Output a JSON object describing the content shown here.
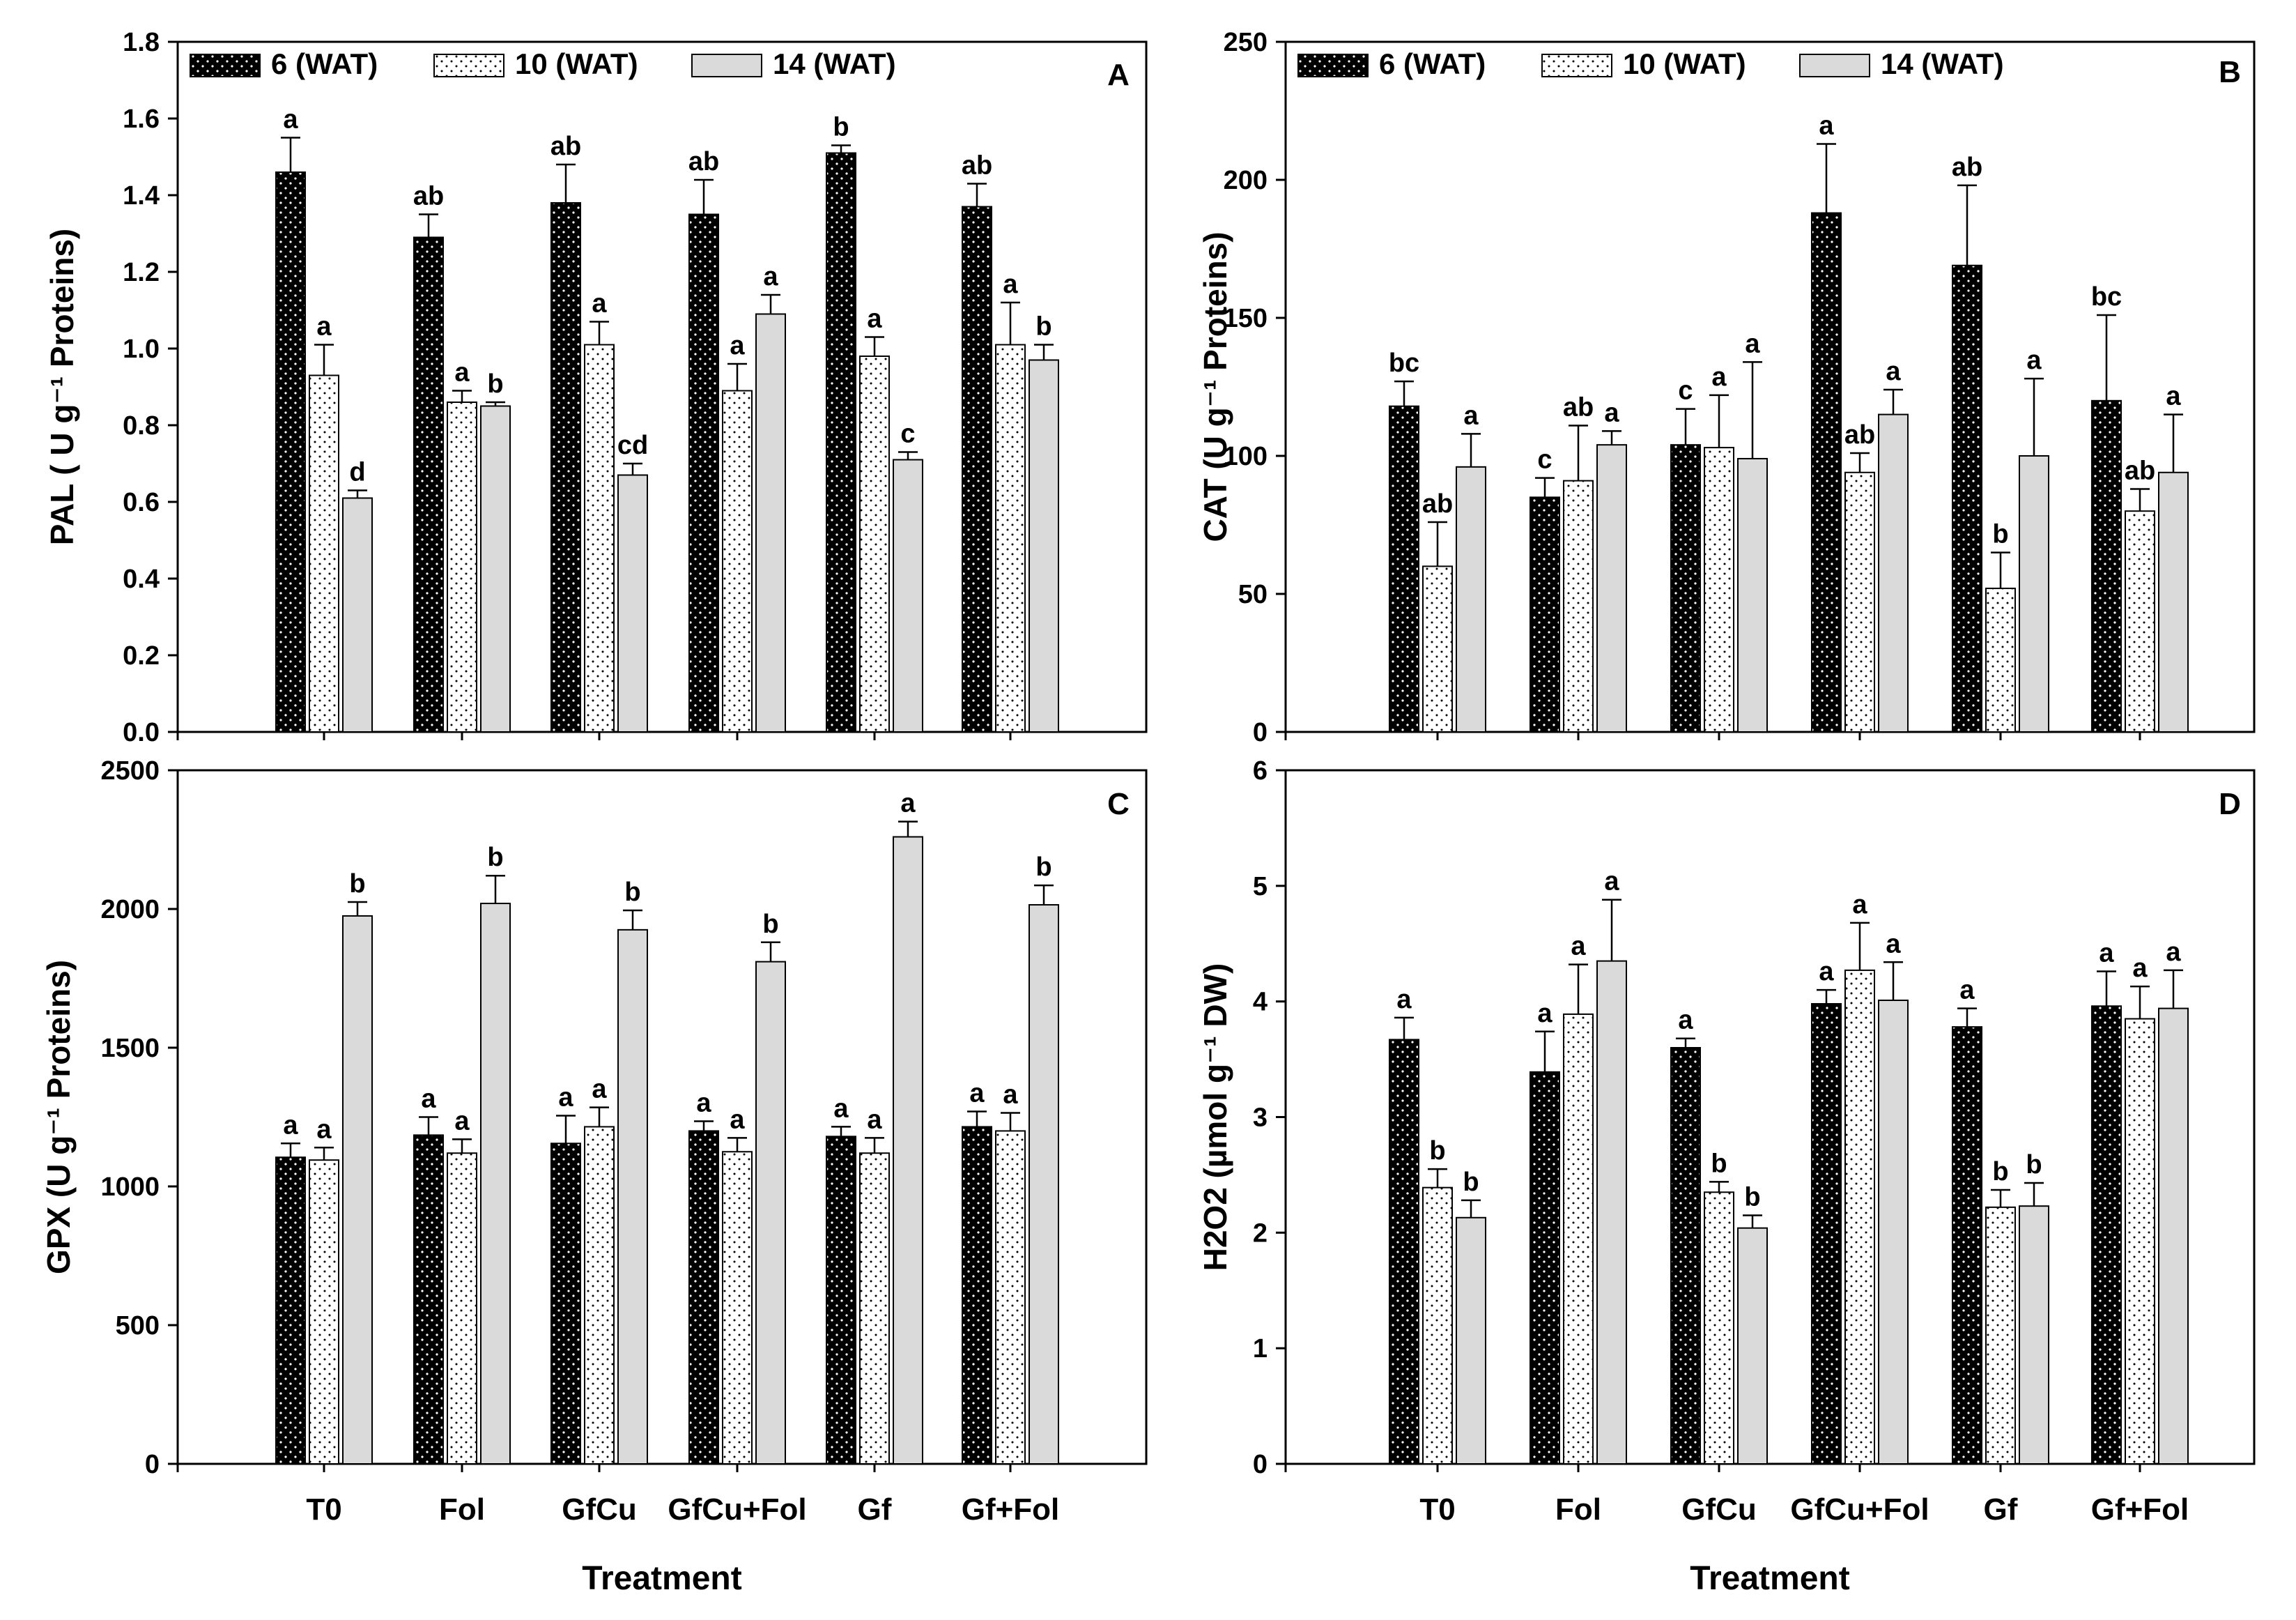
{
  "legend": {
    "series": [
      "6 (WAT)",
      "10 (WAT)",
      "14 (WAT)"
    ]
  },
  "colors": {
    "s6": "#000000",
    "s10": "#ffffff",
    "s14": "#dadada",
    "axis": "#000000"
  },
  "chart_data": [
    {
      "panel": "A",
      "type": "bar",
      "ylabel": "PAL ( U g⁻¹ Proteins)",
      "xlabel": "",
      "ylim": [
        0,
        1.8
      ],
      "yticks": [
        0.0,
        0.2,
        0.4,
        0.6,
        0.8,
        1.0,
        1.2,
        1.4,
        1.6,
        1.8
      ],
      "ytick_labels": [
        "0.0",
        "0.2",
        "0.4",
        "0.6",
        "0.8",
        "1.0",
        "1.2",
        "1.4",
        "1.6",
        "1.8"
      ],
      "categories": [
        "T0",
        "Fol",
        "GfCu",
        "GfCu+Fol",
        "Gf",
        "Gf+Fol"
      ],
      "show_xticklabels": false,
      "series": [
        {
          "name": "6 (WAT)",
          "values": [
            1.46,
            1.29,
            1.38,
            1.35,
            1.51,
            1.37
          ],
          "errors": [
            0.09,
            0.06,
            0.1,
            0.09,
            0.02,
            0.06
          ],
          "letters": [
            "a",
            "ab",
            "ab",
            "ab",
            "b",
            "ab"
          ]
        },
        {
          "name": "10 (WAT)",
          "values": [
            0.93,
            0.86,
            1.01,
            0.89,
            0.98,
            1.01
          ],
          "errors": [
            0.08,
            0.03,
            0.06,
            0.07,
            0.05,
            0.11
          ],
          "letters": [
            "a",
            "a",
            "a",
            "a",
            "a",
            "a"
          ]
        },
        {
          "name": "14 (WAT)",
          "values": [
            0.61,
            0.85,
            0.67,
            1.09,
            0.71,
            0.97
          ],
          "errors": [
            0.02,
            0.01,
            0.03,
            0.05,
            0.02,
            0.04
          ],
          "letters": [
            "d",
            "b",
            "cd",
            "a",
            "c",
            "b"
          ]
        }
      ]
    },
    {
      "panel": "B",
      "type": "bar",
      "ylabel": "CAT (U g⁻¹ Proteins)",
      "xlabel": "",
      "ylim": [
        0,
        250
      ],
      "yticks": [
        0,
        50,
        100,
        150,
        200,
        250
      ],
      "ytick_labels": [
        "0",
        "50",
        "100",
        "150",
        "200",
        "250"
      ],
      "categories": [
        "T0",
        "Fol",
        "GfCu",
        "GfCu+Fol",
        "Gf",
        "Gf+Fol"
      ],
      "show_xticklabels": false,
      "series": [
        {
          "name": "6 (WAT)",
          "values": [
            118,
            85,
            104,
            188,
            169,
            120
          ],
          "errors": [
            9,
            7,
            13,
            25,
            29,
            31
          ],
          "letters": [
            "bc",
            "c",
            "c",
            "a",
            "ab",
            "bc"
          ]
        },
        {
          "name": "10 (WAT)",
          "values": [
            60,
            91,
            103,
            94,
            52,
            80
          ],
          "errors": [
            16,
            20,
            19,
            7,
            13,
            8
          ],
          "letters": [
            "ab",
            "ab",
            "a",
            "ab",
            "b",
            "ab"
          ]
        },
        {
          "name": "14 (WAT)",
          "values": [
            96,
            104,
            99,
            115,
            100,
            94
          ],
          "errors": [
            12,
            5,
            35,
            9,
            28,
            21
          ],
          "letters": [
            "a",
            "a",
            "a",
            "a",
            "a",
            "a"
          ]
        }
      ]
    },
    {
      "panel": "C",
      "type": "bar",
      "ylabel": "GPX (U g⁻¹ Proteins)",
      "xlabel": "Treatment",
      "ylim": [
        0,
        2500
      ],
      "yticks": [
        0,
        500,
        1000,
        1500,
        2000,
        2500
      ],
      "ytick_labels": [
        "0",
        "500",
        "1000",
        "1500",
        "2000",
        "2500"
      ],
      "categories": [
        "T0",
        "Fol",
        "GfCu",
        "GfCu+Fol",
        "Gf",
        "Gf+Fol"
      ],
      "show_xticklabels": true,
      "series": [
        {
          "name": "6 (WAT)",
          "values": [
            1105,
            1185,
            1155,
            1200,
            1180,
            1215
          ],
          "errors": [
            50,
            65,
            100,
            35,
            35,
            55
          ],
          "letters": [
            "a",
            "a",
            "a",
            "a",
            "a",
            "a"
          ]
        },
        {
          "name": "10 (WAT)",
          "values": [
            1095,
            1120,
            1215,
            1125,
            1120,
            1200
          ],
          "errors": [
            45,
            50,
            70,
            50,
            55,
            65
          ],
          "letters": [
            "a",
            "a",
            "a",
            "a",
            "a",
            "a"
          ]
        },
        {
          "name": "14 (WAT)",
          "values": [
            1975,
            2020,
            1925,
            1810,
            2260,
            2015
          ],
          "errors": [
            50,
            100,
            70,
            70,
            55,
            70
          ],
          "letters": [
            "b",
            "b",
            "b",
            "b",
            "a",
            "b"
          ]
        }
      ]
    },
    {
      "panel": "D",
      "type": "bar",
      "ylabel": "H2O2 (µmol g⁻¹  DW)",
      "xlabel": "Treatment",
      "ylim": [
        0,
        6
      ],
      "yticks": [
        0,
        1,
        2,
        3,
        4,
        5,
        6
      ],
      "ytick_labels": [
        "0",
        "1",
        "2",
        "3",
        "4",
        "5",
        "6"
      ],
      "categories": [
        "T0",
        "Fol",
        "GfCu",
        "GfCu+Fol",
        "Gf",
        "Gf+Fol"
      ],
      "show_xticklabels": true,
      "series": [
        {
          "name": "6 (WAT)",
          "values": [
            3.67,
            3.39,
            3.6,
            3.98,
            3.78,
            3.96
          ],
          "errors": [
            0.19,
            0.35,
            0.08,
            0.12,
            0.16,
            0.3
          ],
          "letters": [
            "a",
            "a",
            "a",
            "a",
            "a",
            "a"
          ]
        },
        {
          "name": "10 (WAT)",
          "values": [
            2.39,
            3.89,
            2.35,
            4.27,
            2.22,
            3.85
          ],
          "errors": [
            0.16,
            0.43,
            0.09,
            0.41,
            0.15,
            0.28
          ],
          "letters": [
            "b",
            "a",
            "b",
            "a",
            "b",
            "a"
          ]
        },
        {
          "name": "14 (WAT)",
          "values": [
            2.13,
            4.35,
            2.04,
            4.01,
            2.23,
            3.94
          ],
          "errors": [
            0.15,
            0.53,
            0.11,
            0.33,
            0.2,
            0.33
          ],
          "letters": [
            "b",
            "a",
            "b",
            "a",
            "b",
            "a"
          ]
        }
      ]
    }
  ]
}
